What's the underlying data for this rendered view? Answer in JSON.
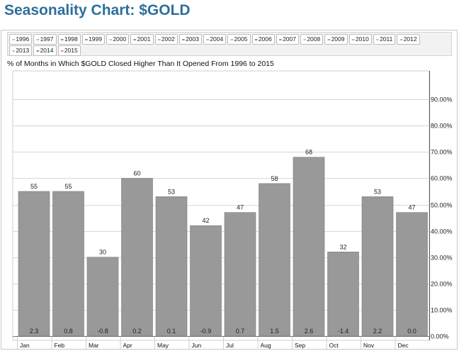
{
  "page": {
    "title": "Seasonality Chart: $GOLD",
    "legend": [
      {
        "label": "1996",
        "color": "#8a8a8a"
      },
      {
        "label": "1997",
        "color": "#3fae3f"
      },
      {
        "label": "1998",
        "color": "#222222"
      },
      {
        "label": "1999",
        "color": "#222222"
      },
      {
        "label": "2000",
        "color": "#8a8a8a"
      },
      {
        "label": "2001",
        "color": "#222222"
      },
      {
        "label": "2002",
        "color": "#1f8a8a"
      },
      {
        "label": "2003",
        "color": "#222222"
      },
      {
        "label": "2004",
        "color": "#c02fc0"
      },
      {
        "label": "2005",
        "color": "#3fae3f"
      },
      {
        "label": "2006",
        "color": "#222222"
      },
      {
        "label": "2007",
        "color": "#1f2f9f"
      },
      {
        "label": "2008",
        "color": "#e08a1f"
      },
      {
        "label": "2009",
        "color": "#7a2fbf"
      },
      {
        "label": "2010",
        "color": "#1f8a6f"
      },
      {
        "label": "2011",
        "color": "#8a8a8a"
      },
      {
        "label": "2012",
        "color": "#c02fc0"
      },
      {
        "label": "2013",
        "color": "#3fae3f"
      },
      {
        "label": "2014",
        "color": "#222222"
      },
      {
        "label": "2015",
        "color": "#c0202f"
      }
    ]
  },
  "chart_data": {
    "type": "bar",
    "title": "% of Months in Which $GOLD Closed Higher Than It Opened From 1996 to 2015",
    "categories": [
      "Jan",
      "Feb",
      "Mar",
      "Apr",
      "May",
      "Jun",
      "Jul",
      "Aug",
      "Sep",
      "Oct",
      "Nov",
      "Dec"
    ],
    "values": [
      55,
      55,
      30,
      60,
      53,
      42,
      47,
      58,
      68,
      32,
      53,
      47
    ],
    "value_labels": [
      "55",
      "55",
      "30",
      "60",
      "53",
      "42",
      "47",
      "58",
      "68",
      "32",
      "53",
      "47"
    ],
    "avg_change_labels": [
      "2.3",
      "0.8",
      "-0.8",
      "0.2",
      "0.1",
      "-0.9",
      "0.7",
      "1.5",
      "2.6",
      "-1.4",
      "2.2",
      "0.0"
    ],
    "ylim": [
      0,
      100
    ],
    "yticks": [
      0,
      10,
      20,
      30,
      40,
      50,
      60,
      70,
      80,
      90
    ],
    "ytick_labels": [
      "0.00%",
      "10.00%",
      "20.00%",
      "30.00%",
      "40.00%",
      "50.00%",
      "60.00%",
      "70.00%",
      "80.00%",
      "90.00%"
    ],
    "y_axis_side": "right",
    "grid": true,
    "bar_color": "#999999"
  }
}
